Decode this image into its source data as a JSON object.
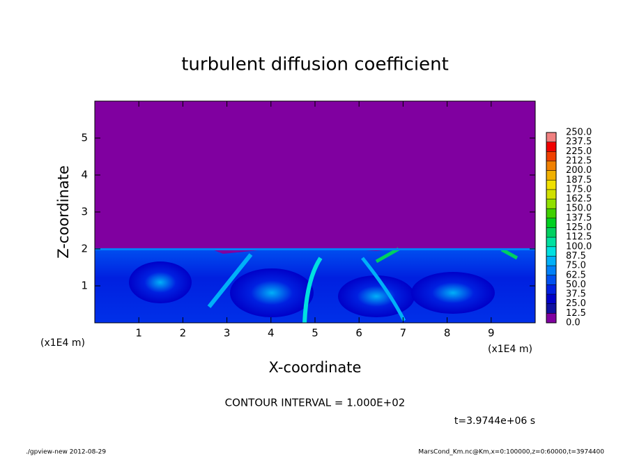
{
  "chart_data": {
    "type": "contour",
    "title": "turbulent diffusion coefficient",
    "x_label": "X-coordinate",
    "y_label": "Z-coordinate",
    "x_unit": "(x1E4 m)",
    "y_unit": "(x1E4 m)",
    "xlim": [
      0,
      10
    ],
    "ylim": [
      0,
      6
    ],
    "xticks": [
      1,
      2,
      3,
      4,
      5,
      6,
      7,
      8,
      9
    ],
    "yticks": [
      1,
      2,
      3,
      4,
      5
    ],
    "contour_interval": "CONTOUR INTERVAL = 1.000E+02",
    "time": "t=3.9744e+06 s",
    "colorbar": {
      "levels": [
        {
          "value": 0,
          "label": "0.0"
        },
        {
          "value": 12.5,
          "label": "12.5"
        },
        {
          "value": 25,
          "label": "25.0"
        },
        {
          "value": 37.5,
          "label": "37.5"
        },
        {
          "value": 50,
          "label": "50.0"
        },
        {
          "value": 62.5,
          "label": "62.5"
        },
        {
          "value": 75,
          "label": "75.0"
        },
        {
          "value": 87.5,
          "label": "87.5"
        },
        {
          "value": 100,
          "label": "100.0"
        },
        {
          "value": 112.5,
          "label": "112.5"
        },
        {
          "value": 125,
          "label": "125.0"
        },
        {
          "value": 137.5,
          "label": "137.5"
        },
        {
          "value": 150,
          "label": "150.0"
        },
        {
          "value": 162.5,
          "label": "162.5"
        },
        {
          "value": 175,
          "label": "175.0"
        },
        {
          "value": 187.5,
          "label": "187.5"
        },
        {
          "value": 200,
          "label": "200.0"
        },
        {
          "value": 212.5,
          "label": "212.5"
        },
        {
          "value": 225,
          "label": "225.0"
        },
        {
          "value": 237.5,
          "label": "237.5"
        },
        {
          "value": 250,
          "label": "250.0"
        }
      ],
      "colors": [
        "#8000a0",
        "#1010a0",
        "#0000c8",
        "#0020e0",
        "#0050f0",
        "#0080f8",
        "#00b0f8",
        "#00e0e0",
        "#00e0a0",
        "#00d060",
        "#00d020",
        "#40d000",
        "#90e000",
        "#d0e000",
        "#f0e000",
        "#f0b000",
        "#f08000",
        "#f04000",
        "#f00000",
        "#f08080"
      ]
    }
  },
  "footer": {
    "left": "./gpview-new  2012-08-29",
    "right": "MarsCond_Km.nc@Km,x=0:100000,z=0:60000,t=3974400"
  }
}
